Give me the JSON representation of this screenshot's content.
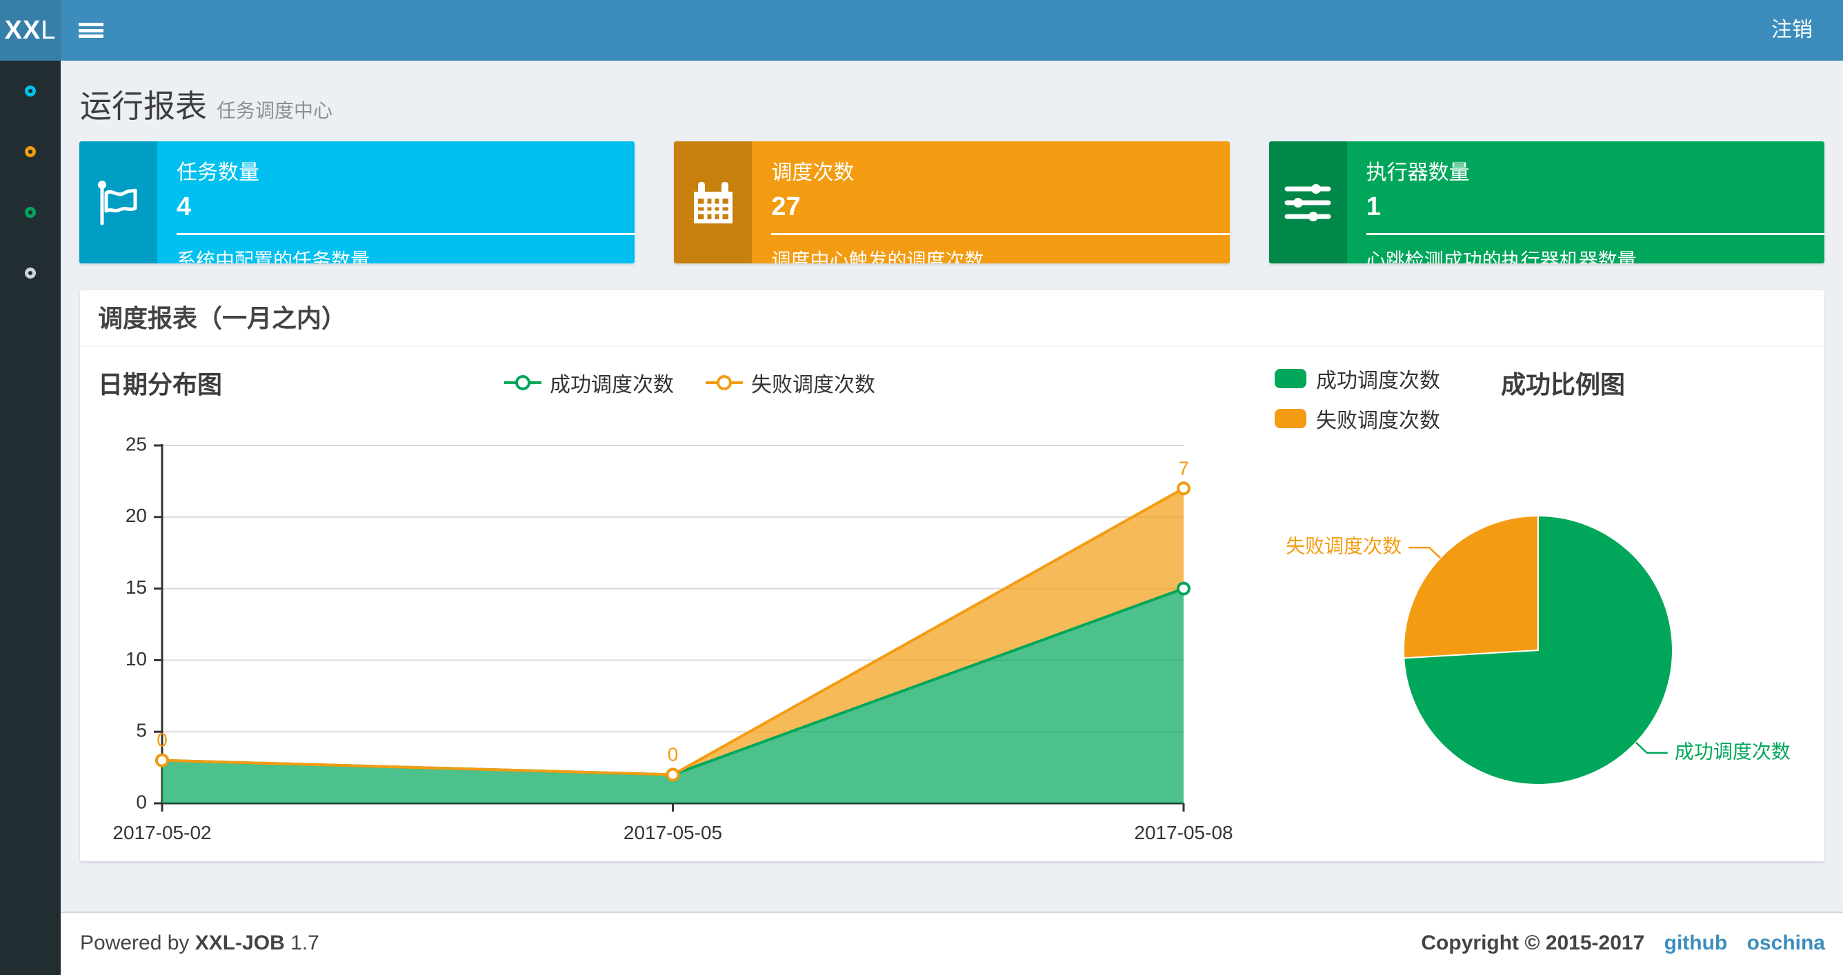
{
  "navbar": {
    "logo_bold": "XX",
    "logo_light": "L",
    "logout_label": "注销"
  },
  "sidebar": {
    "items": [
      {
        "icon": "circle-icon",
        "color": "#00c0ef"
      },
      {
        "icon": "circle-icon",
        "color": "#f39c12"
      },
      {
        "icon": "circle-icon",
        "color": "#00a65a"
      },
      {
        "icon": "circle-icon",
        "color": "#cfd4da"
      }
    ]
  },
  "page_header": {
    "title": "运行报表",
    "subtitle": "任务调度中心"
  },
  "info_boxes": [
    {
      "icon": "flag-icon",
      "label": "任务数量",
      "value": "4",
      "description": "系统中配置的任务数量",
      "color": "#00c0ef"
    },
    {
      "icon": "calendar-icon",
      "label": "调度次数",
      "value": "27",
      "description": "调度中心触发的调度次数",
      "color": "#f39c12"
    },
    {
      "icon": "sliders-icon",
      "label": "执行器数量",
      "value": "1",
      "description": "心跳检测成功的执行器机器数量",
      "color": "#00a65a"
    }
  ],
  "panel": {
    "title": "调度报表（一月之内）"
  },
  "chart_data": [
    {
      "type": "area",
      "title": "日期分布图",
      "stacked": true,
      "x": [
        "2017-05-02",
        "2017-05-05",
        "2017-05-08"
      ],
      "series": [
        {
          "name": "成功调度次数",
          "color": "#00a65a",
          "values": [
            3,
            2,
            15
          ]
        },
        {
          "name": "失败调度次数",
          "color": "#f39c12",
          "values": [
            0,
            0,
            7
          ],
          "point_labels": [
            "0",
            "0",
            "7"
          ]
        }
      ],
      "ylim": [
        0,
        25
      ],
      "yticks": [
        0,
        5,
        10,
        15,
        20,
        25
      ],
      "grid": true,
      "legend_position": "top"
    },
    {
      "type": "pie",
      "title": "成功比例图",
      "slices": [
        {
          "name": "成功调度次数",
          "value": 20,
          "color": "#00a65a"
        },
        {
          "name": "失败调度次数",
          "value": 7,
          "color": "#f39c12"
        }
      ],
      "legend_position": "top-left"
    }
  ],
  "footer": {
    "powered_by_prefix": "Powered by",
    "product": "XXL-JOB",
    "version": "1.7",
    "copyright": "Copyright © 2015-2017",
    "links": [
      {
        "label": "github"
      },
      {
        "label": "oschina"
      }
    ]
  }
}
